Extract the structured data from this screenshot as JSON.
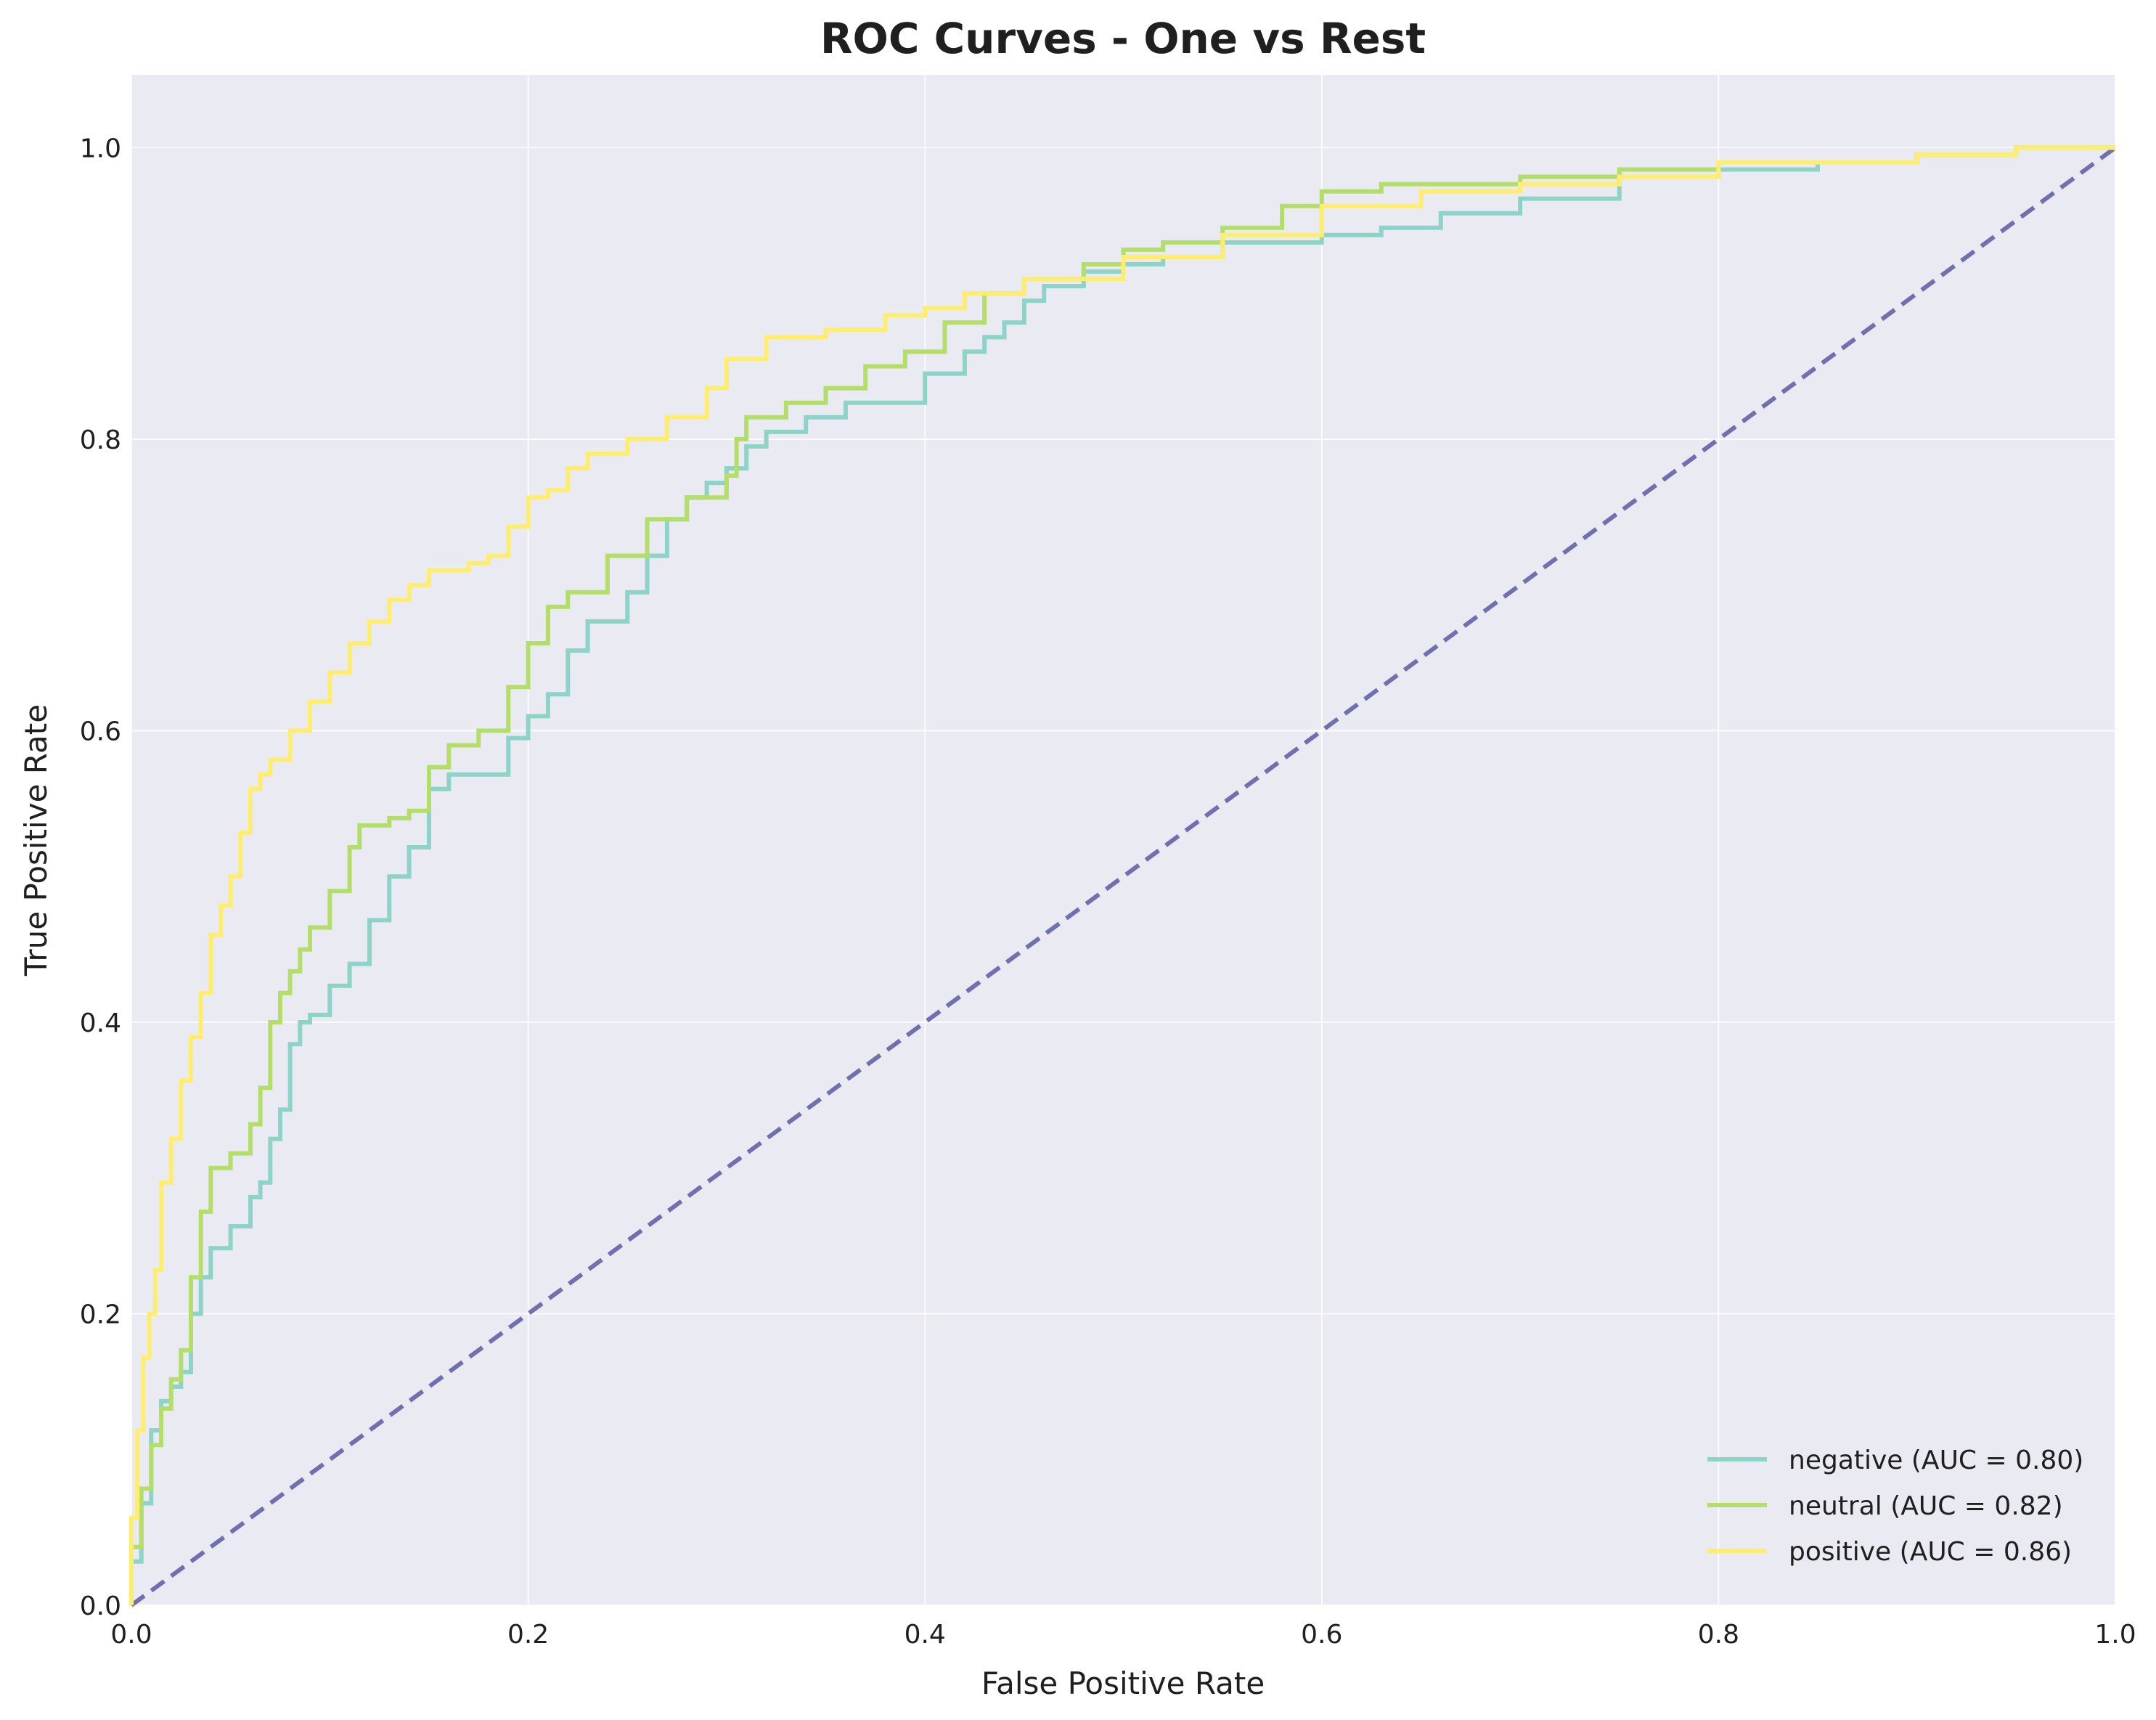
{
  "chart_data": {
    "type": "line",
    "title": "ROC Curves - One vs Rest",
    "xlabel": "False Positive Rate",
    "ylabel": "True Positive Rate",
    "xlim": [
      0.0,
      1.0
    ],
    "ylim": [
      0.0,
      1.05
    ],
    "xticks": [
      0.0,
      0.2,
      0.4,
      0.6,
      0.8,
      1.0
    ],
    "yticks": [
      0.0,
      0.2,
      0.4,
      0.6,
      0.8,
      1.0
    ],
    "xtick_labels": [
      "0.0",
      "0.2",
      "0.4",
      "0.6",
      "0.8",
      "1.0"
    ],
    "ytick_labels": [
      "0.0",
      "0.2",
      "0.4",
      "0.6",
      "0.8",
      "1.0"
    ],
    "grid": true,
    "background_color": "#eaeaf2",
    "legend_position": "lower-right",
    "series": [
      {
        "name": "negative (AUC = 0.80)",
        "color": "#8dd3c7",
        "x": [
          0.0,
          0.0,
          0.005,
          0.01,
          0.015,
          0.02,
          0.025,
          0.03,
          0.035,
          0.04,
          0.05,
          0.06,
          0.065,
          0.07,
          0.075,
          0.08,
          0.085,
          0.09,
          0.1,
          0.11,
          0.12,
          0.13,
          0.14,
          0.15,
          0.16,
          0.175,
          0.19,
          0.2,
          0.21,
          0.22,
          0.23,
          0.25,
          0.26,
          0.27,
          0.28,
          0.29,
          0.3,
          0.31,
          0.32,
          0.34,
          0.36,
          0.38,
          0.4,
          0.42,
          0.43,
          0.44,
          0.45,
          0.46,
          0.48,
          0.5,
          0.52,
          0.55,
          0.6,
          0.63,
          0.66,
          0.7,
          0.75,
          0.8,
          0.85,
          0.9,
          0.95,
          1.0
        ],
        "y": [
          0.0,
          0.03,
          0.07,
          0.12,
          0.14,
          0.15,
          0.16,
          0.2,
          0.225,
          0.245,
          0.26,
          0.28,
          0.29,
          0.32,
          0.34,
          0.385,
          0.4,
          0.405,
          0.425,
          0.44,
          0.47,
          0.5,
          0.52,
          0.56,
          0.57,
          0.57,
          0.595,
          0.61,
          0.625,
          0.655,
          0.675,
          0.695,
          0.72,
          0.745,
          0.76,
          0.77,
          0.78,
          0.795,
          0.805,
          0.815,
          0.825,
          0.825,
          0.845,
          0.86,
          0.87,
          0.88,
          0.895,
          0.905,
          0.915,
          0.92,
          0.925,
          0.935,
          0.94,
          0.945,
          0.955,
          0.965,
          0.98,
          0.985,
          0.99,
          0.995,
          1.0,
          1.0
        ]
      },
      {
        "name": "neutral (AUC = 0.82)",
        "color": "#b3de69",
        "x": [
          0.0,
          0.0,
          0.005,
          0.01,
          0.015,
          0.02,
          0.025,
          0.03,
          0.035,
          0.04,
          0.05,
          0.06,
          0.065,
          0.07,
          0.075,
          0.08,
          0.085,
          0.09,
          0.1,
          0.11,
          0.115,
          0.12,
          0.13,
          0.14,
          0.15,
          0.16,
          0.175,
          0.19,
          0.2,
          0.21,
          0.22,
          0.24,
          0.26,
          0.28,
          0.3,
          0.305,
          0.31,
          0.33,
          0.35,
          0.37,
          0.39,
          0.41,
          0.43,
          0.45,
          0.48,
          0.5,
          0.52,
          0.55,
          0.58,
          0.6,
          0.63,
          0.66,
          0.7,
          0.75,
          0.8,
          0.85,
          0.9,
          0.95,
          1.0
        ],
        "y": [
          0.0,
          0.04,
          0.08,
          0.11,
          0.135,
          0.155,
          0.175,
          0.225,
          0.27,
          0.3,
          0.31,
          0.33,
          0.355,
          0.4,
          0.42,
          0.435,
          0.45,
          0.465,
          0.49,
          0.52,
          0.535,
          0.535,
          0.54,
          0.545,
          0.575,
          0.59,
          0.6,
          0.63,
          0.66,
          0.685,
          0.695,
          0.72,
          0.745,
          0.76,
          0.775,
          0.8,
          0.815,
          0.825,
          0.835,
          0.85,
          0.86,
          0.88,
          0.9,
          0.91,
          0.92,
          0.93,
          0.935,
          0.945,
          0.96,
          0.97,
          0.975,
          0.975,
          0.98,
          0.985,
          0.99,
          0.99,
          0.995,
          1.0,
          1.0
        ]
      },
      {
        "name": "positive (AUC = 0.86)",
        "color": "#ffed6f",
        "x": [
          0.0,
          0.0,
          0.003,
          0.006,
          0.009,
          0.012,
          0.015,
          0.02,
          0.025,
          0.03,
          0.035,
          0.04,
          0.045,
          0.05,
          0.055,
          0.06,
          0.065,
          0.07,
          0.08,
          0.09,
          0.1,
          0.11,
          0.12,
          0.13,
          0.14,
          0.15,
          0.17,
          0.18,
          0.19,
          0.2,
          0.21,
          0.22,
          0.23,
          0.25,
          0.27,
          0.29,
          0.3,
          0.32,
          0.35,
          0.38,
          0.4,
          0.42,
          0.45,
          0.5,
          0.55,
          0.6,
          0.65,
          0.7,
          0.75,
          0.8,
          0.85,
          0.9,
          0.95,
          1.0
        ],
        "y": [
          0.0,
          0.06,
          0.12,
          0.17,
          0.2,
          0.23,
          0.29,
          0.32,
          0.36,
          0.39,
          0.42,
          0.46,
          0.48,
          0.5,
          0.53,
          0.56,
          0.57,
          0.58,
          0.6,
          0.62,
          0.64,
          0.66,
          0.675,
          0.69,
          0.7,
          0.71,
          0.715,
          0.72,
          0.74,
          0.76,
          0.765,
          0.78,
          0.79,
          0.8,
          0.815,
          0.835,
          0.855,
          0.87,
          0.875,
          0.885,
          0.89,
          0.9,
          0.91,
          0.925,
          0.94,
          0.96,
          0.97,
          0.975,
          0.98,
          0.99,
          0.99,
          0.995,
          1.0,
          1.0
        ]
      },
      {
        "name": "baseline",
        "color": "#7070b0",
        "dashed": true,
        "x": [
          0.0,
          1.0
        ],
        "y": [
          0.0,
          1.0
        ]
      }
    ]
  }
}
